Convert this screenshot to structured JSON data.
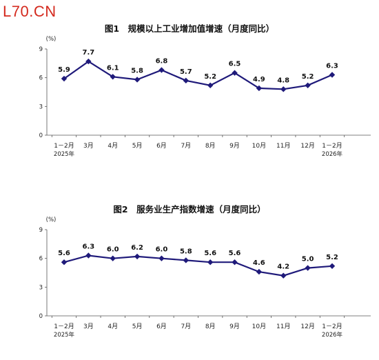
{
  "watermark": "L70.CN",
  "chart_data": [
    {
      "type": "line",
      "title": "图1　规模以上工业增加值增速（月度同比）",
      "unit": "(%)",
      "categories": [
        "1－2月",
        "3月",
        "4月",
        "5月",
        "6月",
        "7月",
        "8月",
        "9月",
        "10月",
        "11月",
        "12月",
        "1－2月"
      ],
      "year_labels": [
        "2025年",
        "2026年"
      ],
      "series": [
        {
          "values": [
            5.9,
            7.7,
            6.1,
            5.8,
            6.8,
            5.7,
            5.2,
            6.5,
            4.9,
            4.8,
            5.2,
            6.3
          ]
        }
      ],
      "data_labels": [
        "5.9",
        "7.7",
        "6.1",
        "5.8",
        "6.8",
        "5.7",
        "5.2",
        "6.5",
        "4.9",
        "4.8",
        "5.2",
        "6.3"
      ],
      "ylim": [
        0,
        9
      ],
      "yticks": [
        "0",
        "3",
        "6",
        "9"
      ],
      "grid": false,
      "color": "#1f1a7a"
    },
    {
      "type": "line",
      "title": "图2　服务业生产指数增速（月度同比）",
      "unit": "(%)",
      "categories": [
        "1－2月",
        "3月",
        "4月",
        "5月",
        "6月",
        "7月",
        "8月",
        "9月",
        "10月",
        "11月",
        "12月",
        "1－2月"
      ],
      "year_labels": [
        "2025年",
        "2026年"
      ],
      "series": [
        {
          "values": [
            5.6,
            6.3,
            6.0,
            6.2,
            6.0,
            5.8,
            5.6,
            5.6,
            4.6,
            4.2,
            5.0,
            5.2
          ]
        }
      ],
      "data_labels": [
        "5.6",
        "6.3",
        "6.0",
        "6.2",
        "6.0",
        "5.8",
        "5.6",
        "5.6",
        "4.6",
        "4.2",
        "5.0",
        "5.2"
      ],
      "ylim": [
        0,
        9
      ],
      "yticks": [
        "0",
        "3",
        "6",
        "9"
      ],
      "grid": false,
      "color": "#1f1a7a"
    }
  ]
}
